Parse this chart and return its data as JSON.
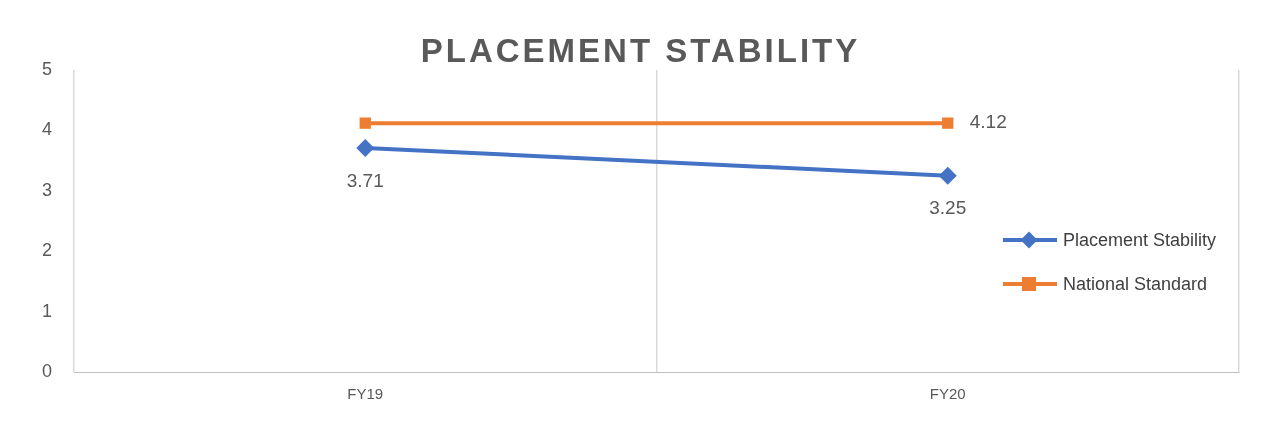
{
  "chart_data": {
    "type": "line",
    "title": "PLACEMENT STABILITY",
    "categories": [
      "FY19",
      "FY20"
    ],
    "series": [
      {
        "name": "Placement Stability",
        "color": "#4472c4",
        "marker": "diamond",
        "values": [
          3.71,
          3.25
        ],
        "value_labels": [
          "3.71",
          "3.25"
        ]
      },
      {
        "name": "National Standard",
        "color": "#ed7d31",
        "marker": "square",
        "values": [
          4.12,
          4.12
        ],
        "value_labels": [
          null,
          "4.12"
        ]
      }
    ],
    "ylim": [
      0,
      5
    ],
    "yticks": [
      0,
      1,
      2,
      3,
      4,
      5
    ],
    "grid": "x",
    "legend": "right",
    "line_style": "solid"
  }
}
